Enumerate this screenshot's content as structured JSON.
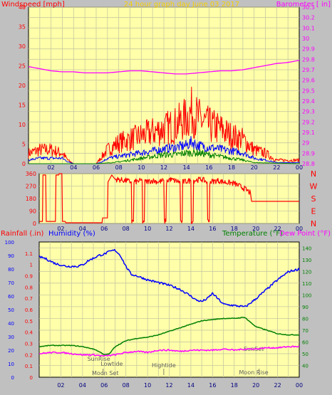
{
  "page": {
    "background": "#c0c0c0",
    "plot_background": "#ffffaa",
    "grid_color": "#c8c8a0"
  },
  "chart_data": [
    {
      "id": "wind-baro",
      "type": "line",
      "title": "24 hour graph day   June 03 2017",
      "title_color": "#f5d000",
      "ylabel_left": "Windspeed [mph]",
      "ylabel_right": "Barometer [ in]",
      "ylim_left": [
        0,
        40
      ],
      "yticks_left": [
        0,
        5,
        10,
        15,
        20,
        25,
        30,
        35,
        40
      ],
      "ylim_right": [
        28.8,
        30.3
      ],
      "yticks_right": [
        "28.8",
        "28.9",
        "29",
        "29.1",
        "29.2",
        "29.3",
        "29.4",
        "29.5",
        "29.6",
        "29.7",
        "29.8",
        "29.9",
        "30",
        "30.1",
        "30.2",
        "30.3"
      ],
      "x_ticks": [
        "02",
        "04",
        "06",
        "08",
        "10",
        "12",
        "14",
        "16",
        "18",
        "20",
        "22",
        "00"
      ],
      "series": [
        {
          "color": "#ff00ff",
          "axis": "right",
          "x": [
            0,
            1,
            2,
            3,
            4,
            5,
            6,
            7,
            8,
            9,
            10,
            11,
            12,
            13,
            14,
            15,
            16,
            17,
            18,
            19,
            20,
            21,
            22,
            23,
            24
          ],
          "y": [
            29.73,
            29.71,
            29.69,
            29.68,
            29.68,
            29.67,
            29.67,
            29.67,
            29.68,
            29.69,
            29.69,
            29.68,
            29.67,
            29.66,
            29.66,
            29.67,
            29.68,
            29.69,
            29.69,
            29.7,
            29.72,
            29.74,
            29.76,
            29.77,
            29.79
          ]
        },
        {
          "color": "#ff0000",
          "axis": "left",
          "role": "gust",
          "x": [
            0,
            1,
            2,
            3,
            3.5,
            4,
            5,
            6,
            6.5,
            7,
            8,
            9,
            10,
            11,
            12,
            13,
            14,
            14.5,
            15,
            16,
            17,
            18,
            19,
            20,
            21,
            22,
            23,
            24
          ],
          "y": [
            3,
            4,
            4,
            3,
            1,
            0,
            0,
            0,
            2,
            4,
            6,
            7,
            8,
            9,
            10,
            11,
            13,
            15,
            13,
            11,
            10,
            8,
            7,
            4,
            3,
            1,
            1,
            1
          ]
        },
        {
          "color": "#0000ff",
          "axis": "left",
          "role": "average",
          "x": [
            0,
            1,
            2,
            3,
            3.5,
            4,
            5,
            6,
            6.5,
            7,
            8,
            9,
            10,
            11,
            12,
            13,
            14,
            14.5,
            15,
            16,
            17,
            18,
            19,
            20,
            21,
            22,
            24
          ],
          "y": [
            1,
            1.5,
            1.5,
            1.5,
            0.5,
            0,
            0,
            0,
            0.5,
            1.5,
            2,
            2.5,
            3,
            3.5,
            4,
            4.5,
            5,
            6,
            5,
            4.5,
            4,
            3.5,
            3,
            1.5,
            1,
            0.3,
            0.3
          ]
        },
        {
          "color": "#008000",
          "axis": "left",
          "role": "minimum",
          "x": [
            0,
            6,
            7,
            8,
            9,
            10,
            11,
            12,
            13,
            14,
            15,
            16,
            17,
            18,
            19,
            20,
            24
          ],
          "y": [
            0,
            0,
            0.2,
            0.5,
            1,
            1.5,
            2,
            2.5,
            2.5,
            3,
            3,
            2.5,
            2,
            1.5,
            1,
            0.3,
            0
          ]
        }
      ]
    },
    {
      "id": "wind-dir",
      "type": "line",
      "ylim": [
        0,
        360
      ],
      "yticks": [
        0,
        90,
        180,
        270,
        360
      ],
      "compass": [
        "N",
        "W",
        "S",
        "E",
        "N"
      ],
      "x_ticks": [
        "02",
        "04",
        "06",
        "08",
        "10",
        "12",
        "14",
        "16",
        "18",
        "20",
        "22",
        "00"
      ],
      "series": [
        {
          "color": "#ff0000",
          "x": [
            0,
            0.3,
            0.35,
            0.6,
            0.65,
            1.5,
            1.55,
            1.8,
            1.85,
            2.1,
            2.15,
            2.4,
            2.45,
            5.8,
            5.85,
            6.3,
            6.35,
            6.7,
            7.0,
            8,
            8.5,
            8.55,
            8.7,
            8.75,
            9.5,
            9.55,
            9.7,
            9.75,
            10.5,
            11,
            11.5,
            11.55,
            11.7,
            11.75,
            12,
            13,
            13.05,
            13.2,
            13.25,
            14,
            14.05,
            14.2,
            14.25,
            15,
            15.5,
            15.55,
            15.7,
            15.75,
            16.5,
            17,
            18,
            18.5,
            19,
            19.5,
            19.6,
            24
          ],
          "y": [
            15,
            15,
            350,
            350,
            15,
            15,
            350,
            350,
            360,
            360,
            15,
            15,
            5,
            5,
            40,
            40,
            300,
            350,
            320,
            310,
            300,
            15,
            15,
            300,
            310,
            15,
            15,
            300,
            310,
            300,
            310,
            15,
            15,
            300,
            320,
            300,
            15,
            15,
            300,
            310,
            15,
            15,
            310,
            320,
            300,
            15,
            15,
            300,
            310,
            300,
            290,
            270,
            250,
            220,
            160,
            160
          ]
        }
      ]
    },
    {
      "id": "temp-hum-rain",
      "type": "line",
      "ylabel_rain": "Rainfall (.in)",
      "ylabel_humidity": "Humidity (%)",
      "ylabel_temp": "Temperature (°F)",
      "ylabel_dew": "Dew Point (°F)",
      "ylim_humidity": [
        0,
        100
      ],
      "yticks_humidity": [
        0,
        10,
        20,
        30,
        40,
        50,
        60,
        70,
        80,
        90,
        100
      ],
      "ylim_rain": [
        0,
        1.2
      ],
      "yticks_rain": [
        "0",
        "0.1",
        "0.2",
        "0.3",
        "0.4",
        "0.5",
        "0.6",
        "0.7",
        "0.8",
        "0.9",
        "1",
        "1.1"
      ],
      "ylim_temp": [
        30,
        145
      ],
      "yticks_temp": [
        40,
        50,
        60,
        70,
        80,
        90,
        100,
        110,
        120,
        130,
        140
      ],
      "x_ticks": [
        "02",
        "04",
        "06",
        "08",
        "10",
        "12",
        "14",
        "16",
        "18",
        "20",
        "22",
        "00"
      ],
      "annotations": [
        "SunRise",
        "Lowtide",
        "Moon Set",
        "Hightide",
        "SunSet",
        "Moon Rise"
      ],
      "series": [
        {
          "color": "#0000ff",
          "role": "humidity",
          "x": [
            0,
            0.5,
            1,
            1.5,
            2,
            2.5,
            3,
            3.5,
            4,
            4.5,
            5,
            5.5,
            6,
            6.5,
            7,
            7.5,
            8,
            8.5,
            9,
            10,
            11,
            11.5,
            12,
            13,
            14,
            14.5,
            15,
            15.5,
            16,
            16.5,
            17,
            18,
            19,
            19.2,
            20,
            21,
            22,
            23,
            24
          ],
          "y": [
            89,
            88,
            86,
            84,
            83,
            82,
            82,
            82,
            83,
            86,
            88,
            90,
            91,
            93,
            94,
            90,
            82,
            76,
            75,
            72,
            70,
            69,
            68,
            65,
            60,
            57,
            56,
            58,
            62,
            58,
            54,
            53,
            52,
            53,
            58,
            65,
            72,
            78,
            80
          ]
        },
        {
          "color": "#008000",
          "role": "temperature",
          "x": [
            0,
            1,
            2,
            3,
            4,
            5,
            5.5,
            6,
            6.5,
            7,
            8,
            9,
            10,
            11,
            12,
            13,
            14,
            15,
            16,
            17,
            18,
            19,
            19.2,
            20,
            21,
            22,
            23,
            24
          ],
          "y": [
            56,
            57,
            57,
            57,
            56,
            54,
            52,
            49,
            50,
            56,
            61,
            63,
            64,
            66,
            69,
            72,
            75,
            78,
            79,
            80,
            80,
            81,
            79,
            73,
            70,
            67,
            66,
            66
          ]
        },
        {
          "color": "#ff00ff",
          "role": "dewpoint",
          "x": [
            0,
            1,
            2,
            3,
            4,
            5,
            6,
            7,
            8,
            9,
            10,
            11,
            12,
            13,
            14,
            15,
            16,
            17,
            18,
            19,
            20,
            21,
            22,
            23,
            24
          ],
          "y": [
            50,
            51,
            51,
            50,
            49,
            49,
            48,
            49,
            51,
            52,
            51,
            53,
            53,
            52,
            53,
            53,
            53,
            54,
            53,
            54,
            54,
            55,
            55,
            56,
            56
          ]
        }
      ]
    }
  ]
}
